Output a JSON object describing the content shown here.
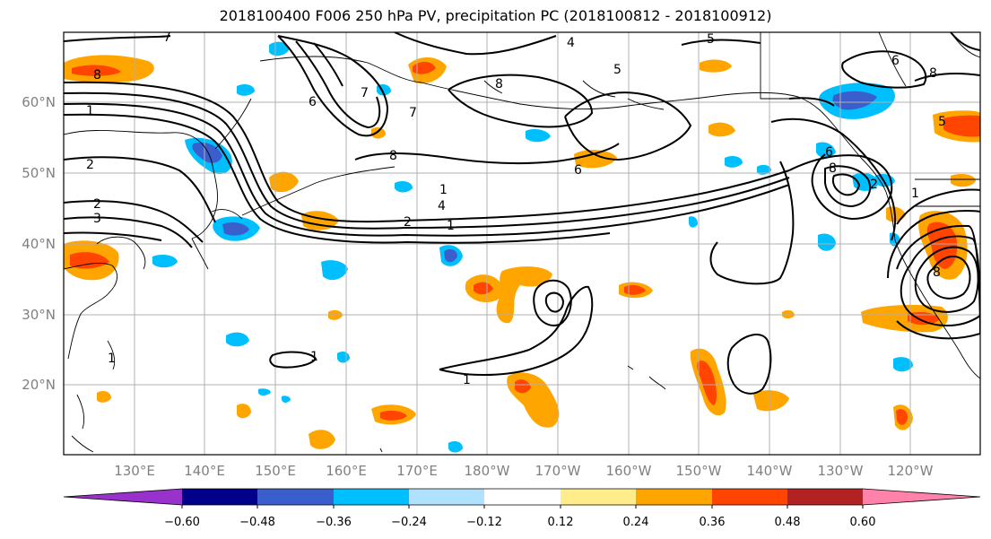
{
  "title": "2018100400 F006 250 hPa PV, precipitation PC (2018100812 - 2018100912)",
  "lat_labels": [
    "60°N",
    "50°N",
    "40°N",
    "30°N",
    "20°N"
  ],
  "lon_labels": [
    "130°E",
    "140°E",
    "150°E",
    "160°E",
    "170°E",
    "180°W",
    "170°W",
    "160°W",
    "150°W",
    "140°W",
    "130°W",
    "120°W"
  ],
  "colorbar": {
    "colors": [
      "#9932cc",
      "#00008b",
      "#3a5fcd",
      "#00bfff",
      "#b0e2ff",
      "#ffffff",
      "#ffec8b",
      "#ffa500",
      "#ff4500",
      "#b22222",
      "#ff82ab"
    ],
    "ticks": [
      "−0.60",
      "−0.48",
      "−0.36",
      "−0.24",
      "−0.12",
      "0.12",
      "0.24",
      "0.36",
      "0.48",
      "0.60"
    ]
  },
  "contour_labels": [
    "7",
    "8",
    "1",
    "2",
    "2",
    "3",
    "4",
    "8",
    "8",
    "7",
    "6",
    "5",
    "6",
    "8",
    "5",
    "1",
    "4",
    "2",
    "1",
    "1",
    "1",
    "1",
    "6",
    "8",
    "2",
    "1",
    "8",
    "6",
    "7",
    "5"
  ]
}
